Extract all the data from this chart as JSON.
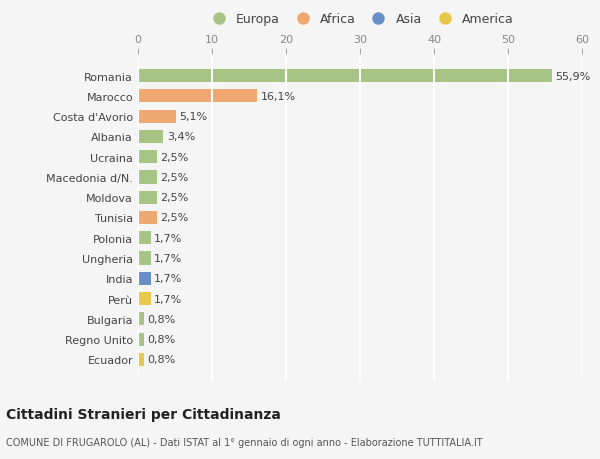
{
  "categories": [
    "Romania",
    "Marocco",
    "Costa d'Avorio",
    "Albania",
    "Ucraina",
    "Macedonia d/N.",
    "Moldova",
    "Tunisia",
    "Polonia",
    "Ungheria",
    "India",
    "Perù",
    "Bulgaria",
    "Regno Unito",
    "Ecuador"
  ],
  "values": [
    55.9,
    16.1,
    5.1,
    3.4,
    2.5,
    2.5,
    2.5,
    2.5,
    1.7,
    1.7,
    1.7,
    1.7,
    0.8,
    0.8,
    0.8
  ],
  "labels": [
    "55,9%",
    "16,1%",
    "5,1%",
    "3,4%",
    "2,5%",
    "2,5%",
    "2,5%",
    "2,5%",
    "1,7%",
    "1,7%",
    "1,7%",
    "1,7%",
    "0,8%",
    "0,8%",
    "0,8%"
  ],
  "colors": [
    "#a8c484",
    "#f0a872",
    "#f0a872",
    "#a8c484",
    "#a8c484",
    "#a8c484",
    "#a8c484",
    "#f0a872",
    "#a8c484",
    "#a8c484",
    "#6a8fc8",
    "#e8c84a",
    "#a8c484",
    "#a8c484",
    "#e8c84a"
  ],
  "legend": [
    {
      "label": "Europa",
      "color": "#a8c484"
    },
    {
      "label": "Africa",
      "color": "#f0a872"
    },
    {
      "label": "Asia",
      "color": "#6a8fc8"
    },
    {
      "label": "America",
      "color": "#e8c84a"
    }
  ],
  "xlim": [
    0,
    60
  ],
  "xticks": [
    0,
    10,
    20,
    30,
    40,
    50,
    60
  ],
  "title": "Cittadini Stranieri per Cittadinanza",
  "subtitle": "COMUNE DI FRUGAROLO (AL) - Dati ISTAT al 1° gennaio di ogni anno - Elaborazione TUTTITALIA.IT",
  "background_color": "#f5f5f5",
  "bar_height": 0.65,
  "grid_color": "#ffffff",
  "label_fontsize": 8,
  "tick_fontsize": 8,
  "ytick_fontsize": 8
}
